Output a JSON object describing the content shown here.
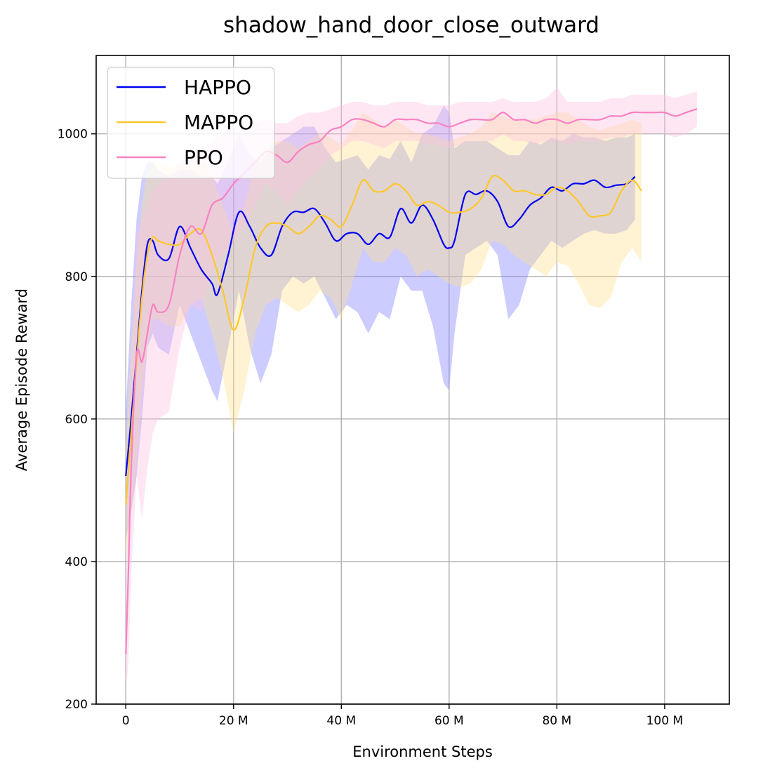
{
  "chart_data": {
    "type": "line",
    "title": "shadow_hand_door_close_outward",
    "xlabel": "Environment Steps",
    "ylabel": "Average Episode Reward",
    "xlim": [
      -5.5,
      112
    ],
    "ylim": [
      200,
      1110
    ],
    "xticks": [
      0,
      20,
      40,
      60,
      80,
      100
    ],
    "xtick_labels": [
      "0",
      "20 M",
      "40 M",
      "60 M",
      "80 M",
      "100 M"
    ],
    "yticks": [
      200,
      400,
      600,
      800,
      1000
    ],
    "ytick_labels": [
      "200",
      "400",
      "600",
      "800",
      "1000"
    ],
    "grid": true,
    "legend_position": "top-left",
    "series": [
      {
        "name": "HAPPO",
        "color": "#0000ee",
        "band_color": "#8080ff",
        "x": [
          0,
          1,
          2,
          3,
          4,
          5,
          6,
          8,
          10,
          12,
          14,
          16,
          17,
          19,
          21,
          23,
          25,
          27,
          29,
          31,
          33,
          35,
          37,
          39,
          41,
          43,
          45,
          47,
          49,
          51,
          53,
          55,
          57,
          59,
          60,
          61,
          63,
          65,
          67,
          69,
          71,
          73,
          75,
          77,
          79,
          81,
          83,
          85,
          87,
          89,
          91,
          93,
          94.5
        ],
        "y": [
          520,
          600,
          690,
          780,
          845,
          850,
          830,
          825,
          870,
          840,
          810,
          790,
          775,
          830,
          890,
          870,
          840,
          830,
          870,
          890,
          890,
          895,
          875,
          850,
          860,
          860,
          845,
          860,
          855,
          895,
          875,
          900,
          880,
          845,
          840,
          850,
          915,
          915,
          920,
          905,
          870,
          880,
          900,
          910,
          925,
          920,
          930,
          930,
          935,
          925,
          928,
          930,
          940
        ],
        "upper": [
          610,
          760,
          880,
          940,
          960,
          960,
          950,
          940,
          950,
          950,
          940,
          940,
          930,
          960,
          1000,
          970,
          960,
          980,
          990,
          1000,
          1010,
          1010,
          980,
          960,
          965,
          970,
          950,
          970,
          965,
          990,
          960,
          1000,
          1010,
          1040,
          1030,
          980,
          990,
          990,
          990,
          980,
          970,
          970,
          990,
          985,
          995,
          990,
          1000,
          995,
          995,
          990,
          995,
          995,
          1000
        ],
        "lower": [
          430,
          470,
          520,
          600,
          700,
          720,
          700,
          690,
          760,
          720,
          680,
          640,
          625,
          700,
          780,
          700,
          650,
          690,
          780,
          800,
          790,
          800,
          770,
          740,
          760,
          750,
          720,
          750,
          740,
          800,
          780,
          780,
          730,
          650,
          640,
          720,
          830,
          840,
          850,
          830,
          740,
          760,
          810,
          830,
          850,
          840,
          850,
          860,
          865,
          860,
          860,
          865,
          880
        ]
      },
      {
        "name": "MAPPO",
        "color": "#ffc72c",
        "band_color": "#ffe090",
        "x": [
          0,
          1,
          2,
          3,
          4,
          5,
          6,
          8,
          10,
          12,
          14,
          16,
          18,
          20,
          22,
          24,
          26,
          28,
          30,
          32,
          34,
          36,
          38,
          40,
          42,
          44,
          46,
          48,
          50,
          52,
          54,
          56,
          58,
          60,
          62,
          64,
          66,
          68,
          70,
          72,
          74,
          76,
          78,
          80,
          82,
          84,
          86,
          88,
          90,
          92,
          94,
          95.7
        ],
        "y": [
          480,
          580,
          680,
          770,
          830,
          855,
          850,
          845,
          845,
          860,
          865,
          830,
          780,
          725,
          770,
          840,
          870,
          875,
          870,
          860,
          870,
          885,
          880,
          870,
          900,
          935,
          920,
          920,
          930,
          920,
          900,
          905,
          900,
          890,
          890,
          895,
          910,
          940,
          935,
          920,
          920,
          915,
          915,
          925,
          920,
          905,
          885,
          885,
          890,
          920,
          935,
          920
        ],
        "upper": [
          560,
          700,
          820,
          900,
          950,
          960,
          960,
          955,
          955,
          960,
          965,
          940,
          900,
          860,
          900,
          960,
          980,
          990,
          990,
          980,
          990,
          1000,
          995,
          985,
          1005,
          1030,
          1020,
          1010,
          1020,
          1010,
          1000,
          1000,
          995,
          990,
          995,
          1000,
          1010,
          1030,
          1025,
          1020,
          1020,
          1020,
          1025,
          1030,
          1030,
          1020,
          1010,
          1005,
          1010,
          1015,
          1020,
          1015
        ],
        "lower": [
          410,
          470,
          540,
          640,
          700,
          740,
          740,
          730,
          730,
          760,
          770,
          720,
          660,
          580,
          640,
          720,
          760,
          770,
          760,
          750,
          760,
          780,
          770,
          740,
          790,
          840,
          820,
          820,
          840,
          830,
          800,
          810,
          800,
          790,
          785,
          790,
          810,
          850,
          845,
          830,
          820,
          810,
          800,
          820,
          815,
          790,
          760,
          755,
          770,
          820,
          840,
          820
        ]
      },
      {
        "name": "PPO",
        "color": "#f882c1",
        "band_color": "#fcc4e0",
        "x": [
          0,
          0.5,
          1,
          2,
          3,
          4,
          5,
          6,
          8,
          10,
          12,
          14,
          16,
          18,
          20,
          22,
          24,
          26,
          28,
          30,
          32,
          34,
          36,
          38,
          40,
          42,
          44,
          46,
          48,
          50,
          52,
          54,
          56,
          58,
          60,
          62,
          64,
          66,
          68,
          70,
          72,
          74,
          76,
          78,
          80,
          82,
          84,
          86,
          88,
          90,
          92,
          94,
          96,
          98,
          100,
          102,
          104,
          106
        ],
        "y": [
          270,
          390,
          530,
          690,
          680,
          720,
          760,
          750,
          760,
          830,
          870,
          860,
          900,
          910,
          930,
          945,
          960,
          975,
          970,
          960,
          975,
          985,
          990,
          1005,
          1010,
          1020,
          1020,
          1015,
          1010,
          1020,
          1020,
          1020,
          1015,
          1015,
          1010,
          1015,
          1020,
          1020,
          1020,
          1030,
          1020,
          1020,
          1015,
          1020,
          1020,
          1015,
          1020,
          1020,
          1020,
          1025,
          1025,
          1030,
          1030,
          1030,
          1030,
          1025,
          1030,
          1035
        ],
        "upper": [
          330,
          520,
          680,
          860,
          880,
          900,
          920,
          930,
          940,
          960,
          980,
          975,
          990,
          1000,
          1010,
          1015,
          1015,
          1020,
          1015,
          1015,
          1025,
          1030,
          1030,
          1035,
          1040,
          1045,
          1045,
          1040,
          1040,
          1045,
          1045,
          1045,
          1040,
          1040,
          1040,
          1045,
          1045,
          1045,
          1045,
          1050,
          1045,
          1045,
          1045,
          1050,
          1065,
          1045,
          1045,
          1045,
          1045,
          1050,
          1050,
          1055,
          1055,
          1055,
          1055,
          1050,
          1055,
          1060
        ],
        "lower": [
          220,
          260,
          380,
          520,
          460,
          530,
          580,
          600,
          610,
          700,
          760,
          750,
          810,
          830,
          850,
          870,
          900,
          930,
          920,
          900,
          920,
          940,
          950,
          970,
          980,
          990,
          990,
          985,
          980,
          990,
          990,
          990,
          985,
          985,
          980,
          985,
          990,
          990,
          990,
          1000,
          990,
          990,
          985,
          990,
          990,
          985,
          990,
          990,
          990,
          995,
          995,
          1000,
          1000,
          1000,
          1000,
          995,
          1000,
          1010
        ]
      }
    ]
  }
}
